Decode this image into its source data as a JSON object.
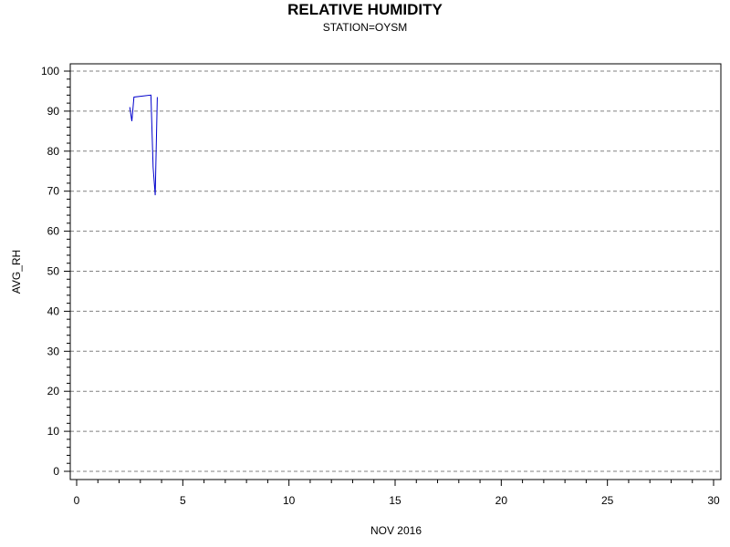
{
  "title": "RELATIVE HUMIDITY",
  "subtitle": "STATION=OYSM",
  "chart_data": {
    "type": "line",
    "title": "RELATIVE HUMIDITY",
    "subtitle": "STATION=OYSM",
    "xlabel": "NOV 2016",
    "ylabel": "AVG_RH",
    "xlim": [
      0,
      30
    ],
    "ylim": [
      0,
      100
    ],
    "x_ticks": [
      "0",
      "5",
      "10",
      "15",
      "20",
      "25",
      "30"
    ],
    "y_ticks": [
      "0",
      "10",
      "20",
      "30",
      "40",
      "50",
      "60",
      "70",
      "80",
      "90",
      "100"
    ],
    "grid": "horizontal dashed",
    "series": [
      {
        "color": "#0000cc",
        "x": [
          2.5,
          2.6,
          2.7,
          3.5,
          3.6,
          3.7,
          3.8
        ],
        "y": [
          91,
          87.5,
          93.5,
          94,
          76,
          69,
          93.5
        ]
      }
    ]
  }
}
